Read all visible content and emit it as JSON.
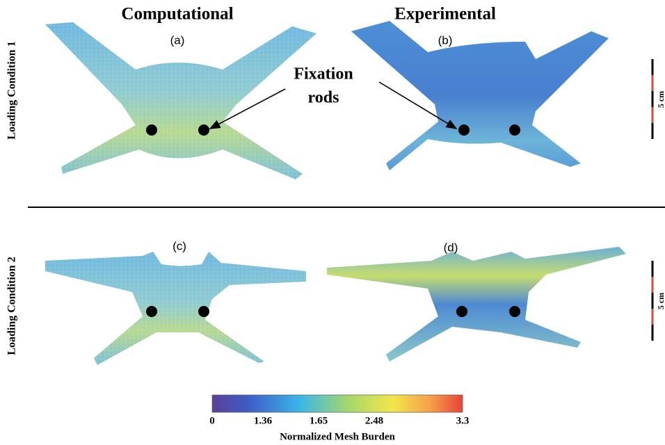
{
  "columns": [
    "Computational",
    "Experimental"
  ],
  "panels": [
    "(a)",
    "(b)",
    "(c)",
    "(d)"
  ],
  "rows": [
    "Loading Condition 1",
    "Loading Condition 2"
  ],
  "annotation": {
    "lines": [
      "Fixation",
      "rods"
    ]
  },
  "scale_bars": [
    "5 cm",
    "5 cm"
  ],
  "colorbar": {
    "ticks": [
      0,
      1.36,
      1.65,
      2.48,
      3.3
    ],
    "label": "Normalized Mesh Burden"
  }
}
